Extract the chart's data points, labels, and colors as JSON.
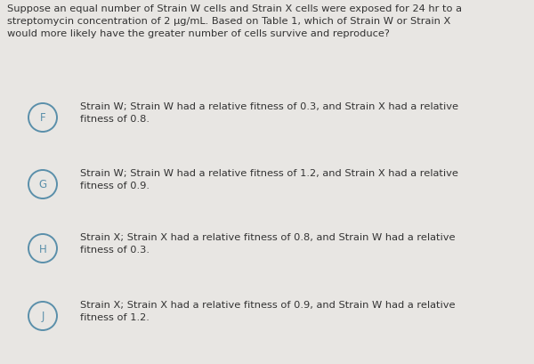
{
  "background_color": "#e8e6e3",
  "question_text": "Suppose an equal number of Strain W cells and Strain X cells were exposed for 24 hr to a\nstreptomycin concentration of 2 μg/mL. Based on Table 1, which of Strain W or Strain X\nwould more likely have the greater number of cells survive and reproduce?",
  "options": [
    {
      "label": "F",
      "text": "Strain W; Strain W had a relative fitness of 0.3, and Strain X had a relative\nfitness of 0.8."
    },
    {
      "label": "G",
      "text": "Strain W; Strain W had a relative fitness of 1.2, and Strain X had a relative\nfitness of 0.9."
    },
    {
      "label": "H",
      "text": "Strain X; Strain X had a relative fitness of 0.8, and Strain W had a relative\nfitness of 0.3."
    },
    {
      "label": "J",
      "text": "Strain X; Strain X had a relative fitness of 0.9, and Strain W had a relative\nfitness of 1.2."
    }
  ],
  "question_fontsize": 8.2,
  "option_fontsize": 8.2,
  "label_fontsize": 8.5,
  "text_color": "#333333",
  "circle_edge_color": "#7aaSc8",
  "circle_face_color": "#e8e6e3",
  "label_color": "#5a8faa",
  "fig_width": 6.0,
  "fig_height": 4.1,
  "dpi": 100
}
